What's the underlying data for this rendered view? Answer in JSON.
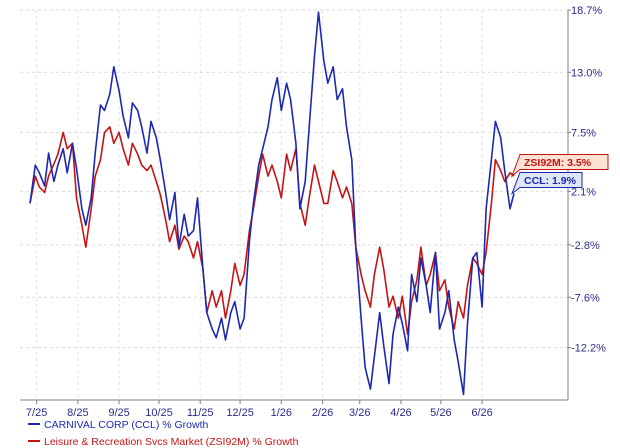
{
  "chart_data": {
    "type": "line",
    "title": "",
    "xlabel": "",
    "ylabel": "",
    "x": [
      "6/26/2025",
      "6/30/2025",
      "7/3/2025",
      "7/7/2025",
      "7/10/2025",
      "7/14/2025",
      "7/17/2025",
      "7/21/2025",
      "7/24/2025",
      "7/28/2025",
      "7/31/2025",
      "8/4/2025",
      "8/7/2025",
      "8/11/2025",
      "8/14/2025",
      "8/18/2025",
      "8/21/2025",
      "8/25/2025",
      "8/28/2025",
      "9/1/2025",
      "9/4/2025",
      "9/8/2025",
      "9/11/2025",
      "9/15/2025",
      "9/18/2025",
      "9/22/2025",
      "9/25/2025",
      "9/29/2025",
      "10/2/2025",
      "10/6/2025",
      "10/9/2025",
      "10/13/2025",
      "10/16/2025",
      "10/20/2025",
      "10/23/2025",
      "10/27/2025",
      "10/30/2025",
      "11/3/2025",
      "11/6/2025",
      "11/10/2025",
      "11/13/2025",
      "11/17/2025",
      "11/20/2025",
      "11/24/2025",
      "11/27/2025",
      "12/1/2025",
      "12/4/2025",
      "12/8/2025",
      "12/11/2025",
      "12/15/2025",
      "12/18/2025",
      "12/22/2025",
      "12/25/2025",
      "12/29/2025",
      "1/1/2026",
      "1/5/2026",
      "1/8/2026",
      "1/12/2026",
      "1/15/2026",
      "1/19/2026",
      "1/22/2026",
      "1/26/2026",
      "1/29/2026",
      "2/2/2026",
      "2/5/2026",
      "2/9/2026",
      "2/12/2026",
      "2/16/2026",
      "2/19/2026",
      "2/23/2026",
      "2/26/2026",
      "3/2/2026",
      "3/5/2026",
      "3/9/2026",
      "3/12/2026",
      "3/16/2026",
      "3/19/2026",
      "3/23/2026",
      "3/26/2026",
      "3/30/2026",
      "4/2/2026",
      "4/6/2026",
      "4/9/2026",
      "4/13/2026",
      "4/16/2026",
      "4/20/2026",
      "4/23/2026",
      "4/27/2026",
      "4/30/2026",
      "5/4/2026",
      "5/7/2026",
      "5/11/2026",
      "5/14/2026",
      "5/18/2026",
      "5/21/2026",
      "5/25/2026",
      "5/28/2026",
      "6/1/2026",
      "6/4/2026",
      "6/8/2026",
      "6/11/2026",
      "6/15/2026",
      "6/18/2026",
      "6/22/2026",
      "6/25/2026"
    ],
    "x_ticks": [
      "7/25",
      "8/25",
      "9/25",
      "10/25",
      "11/25",
      "12/25",
      "1/26",
      "2/26",
      "3/26",
      "4/26",
      "5/26",
      "6/26"
    ],
    "y_ticks": [
      "18.7%",
      "13.0%",
      "7.5%",
      "2.1%",
      "-2.8%",
      "-7.6%",
      "-12.2%"
    ],
    "ylim": [
      -17,
      18.7
    ],
    "series": [
      {
        "name": "CARNIVAL CORP (CCL) % Growth",
        "color": "#1c28b0",
        "values": [
          1.0,
          4.5,
          3.8,
          2.6,
          5.6,
          3.0,
          4.5,
          6.0,
          3.8,
          6.5,
          4.2,
          0.5,
          -1.0,
          1.5,
          5.6,
          10.0,
          9.5,
          11.0,
          13.5,
          11.3,
          9.0,
          7.0,
          10.2,
          9.5,
          8.0,
          5.6,
          8.5,
          7.0,
          5.0,
          2.0,
          -0.5,
          2.0,
          -3.0,
          0.0,
          -2.0,
          -1.5,
          1.5,
          -5.0,
          -9.0,
          -10.5,
          -11.3,
          -9.5,
          -11.5,
          -9.0,
          -8.0,
          -10.5,
          -9.5,
          -2.5,
          1.0,
          4.5,
          6.0,
          8.0,
          10.5,
          12.5,
          9.5,
          12.0,
          10.5,
          6.5,
          0.5,
          3.0,
          8.0,
          14.5,
          18.5,
          14.0,
          12.0,
          13.5,
          10.5,
          11.5,
          8.0,
          5.0,
          -3.0,
          -9.5,
          -14.0,
          -16.0,
          -13.0,
          -9.0,
          -12.0,
          -15.5,
          -11.0,
          -8.5,
          -10.0,
          -12.5,
          -5.5,
          -8.0,
          -4.0,
          -6.5,
          -9.0,
          -3.5,
          -10.5,
          -9.0,
          -7.0,
          -11.5,
          -13.5,
          -16.5,
          -10.0,
          -4.0,
          -3.5,
          -8.5,
          0.5,
          5.0,
          8.5,
          7.0,
          4.0,
          0.5,
          1.9
        ]
      },
      {
        "name": "Leisure & Recreation Svcs Market (ZSI92M) % Growth",
        "color": "#c41414",
        "values": [
          1.0,
          3.5,
          2.5,
          2.0,
          3.5,
          4.6,
          5.5,
          7.5,
          6.0,
          6.5,
          1.5,
          -1.0,
          -3.0,
          0.5,
          3.5,
          5.0,
          7.5,
          8.0,
          6.5,
          7.5,
          6.0,
          4.5,
          6.5,
          5.5,
          4.5,
          4.0,
          4.5,
          3.0,
          1.8,
          -0.5,
          -2.5,
          -1.0,
          -3.2,
          -2.0,
          -2.5,
          -4.0,
          -2.5,
          -5.0,
          -9.0,
          -7.0,
          -8.5,
          -7.0,
          -9.5,
          -7.0,
          -4.5,
          -6.5,
          -5.5,
          -1.5,
          0.5,
          3.5,
          5.5,
          3.5,
          4.5,
          3.0,
          1.5,
          5.5,
          4.0,
          6.0,
          1.0,
          -1.0,
          1.5,
          4.5,
          3.0,
          1.0,
          1.0,
          4.0,
          3.0,
          1.5,
          2.5,
          1.0,
          -3.0,
          -5.5,
          -7.0,
          -8.5,
          -5.5,
          -3.0,
          -5.0,
          -8.5,
          -7.5,
          -9.5,
          -7.5,
          -11.0,
          -8.0,
          -6.0,
          -3.0,
          -6.5,
          -5.5,
          -3.5,
          -7.0,
          -6.0,
          -8.5,
          -10.5,
          -8.0,
          -9.5,
          -6.5,
          -4.0,
          -4.5,
          -5.5,
          -3.5,
          1.0,
          5.0,
          4.0,
          3.0,
          3.8,
          3.5
        ]
      }
    ],
    "end_tags": [
      {
        "label": "ZSI92M: 3.5%",
        "series": 1
      },
      {
        "label": "CCL: 1.9%",
        "series": 0
      }
    ],
    "legend": {
      "position": "bottom-left",
      "items": [
        {
          "label": "CARNIVAL CORP (CCL) % Growth",
          "color": "#1c28b0"
        },
        {
          "label": "Leisure & Recreation Svcs Market (ZSI92M) % Growth",
          "color": "#c41414"
        }
      ]
    },
    "grid": true
  }
}
